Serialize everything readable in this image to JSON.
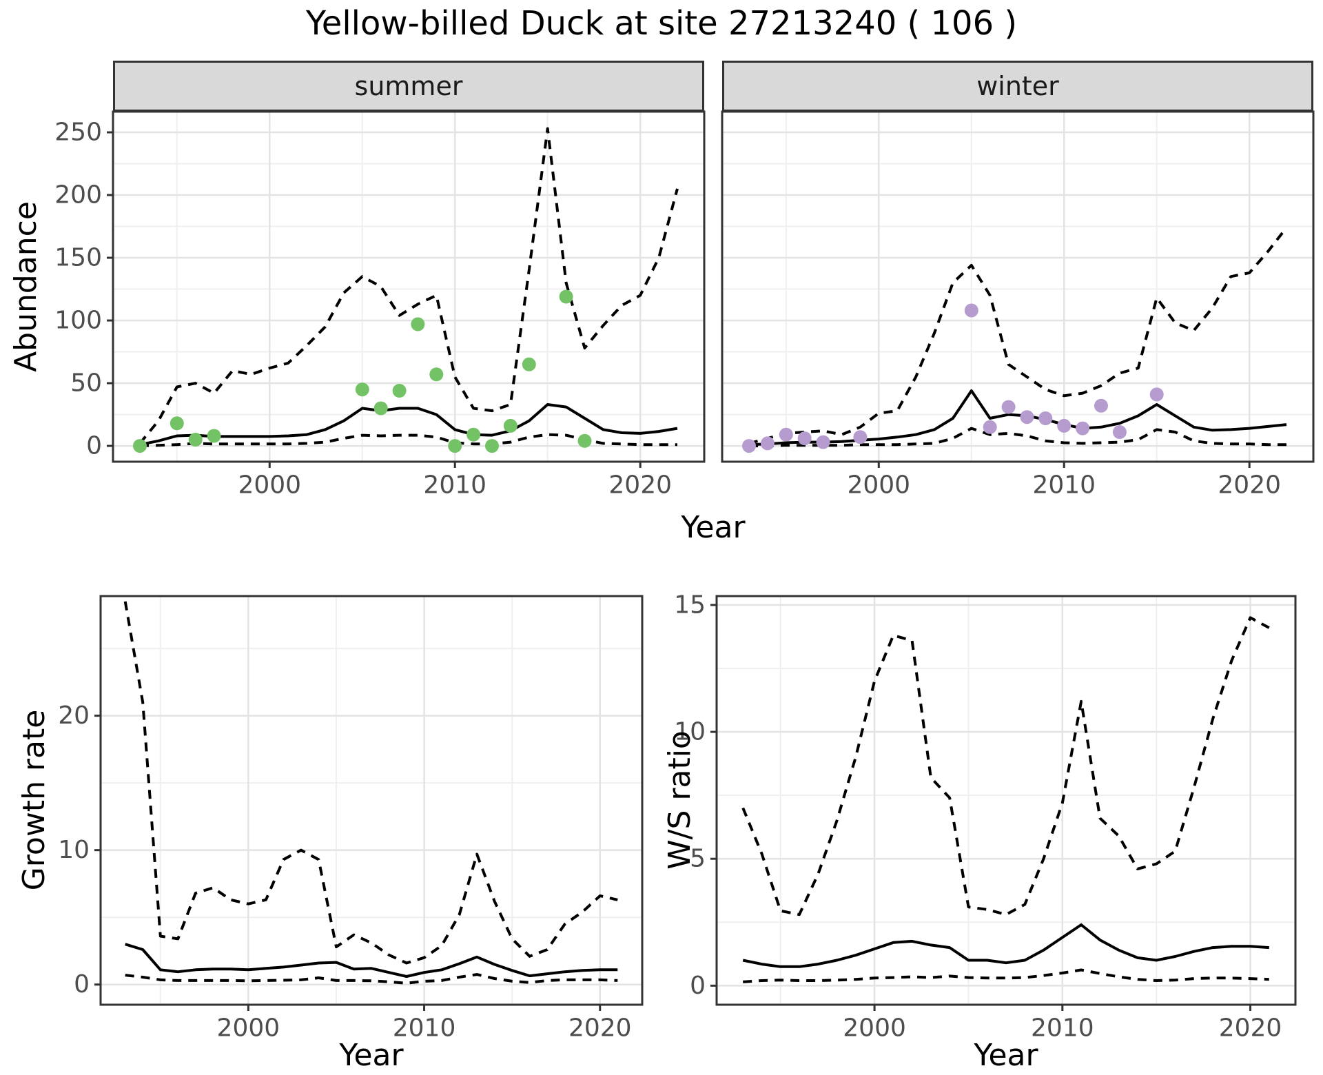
{
  "title": "Yellow-billed Duck at site 27213240 ( 106 )",
  "labels": {
    "year": "Year"
  },
  "colors": {
    "summer_points": "#74c266",
    "winter_points": "#b69bce",
    "line": "#000000",
    "grid_major": "#e3e3e3",
    "grid_minor": "#efefef",
    "panel_border": "#333333",
    "strip_fill": "#d9d9d9",
    "tick_label": "#4d4d4d"
  },
  "chart_data": [
    {
      "id": "abundance-summer",
      "type": "line",
      "facet_label": "summer",
      "ylabel": "Abundance",
      "x": [
        1993,
        1994,
        1995,
        1996,
        1997,
        1998,
        1999,
        2000,
        2001,
        2002,
        2003,
        2004,
        2005,
        2006,
        2007,
        2008,
        2009,
        2010,
        2011,
        2012,
        2013,
        2014,
        2015,
        2016,
        2017,
        2018,
        2019,
        2020,
        2021,
        2022
      ],
      "series": [
        {
          "name": "upper-95ci",
          "style": "dashed",
          "values": [
            2,
            20,
            47,
            50,
            42,
            60,
            57,
            62,
            66,
            80,
            95,
            122,
            135,
            127,
            104,
            113,
            120,
            55,
            30,
            28,
            33,
            140,
            253,
            130,
            78,
            96,
            112,
            120,
            150,
            205
          ]
        },
        {
          "name": "lower-95ci",
          "style": "dashed",
          "values": [
            0,
            0.5,
            1,
            2,
            1.5,
            1.5,
            1.5,
            1.5,
            1.5,
            2,
            3,
            6,
            8.5,
            8,
            8.5,
            8.5,
            7,
            2.5,
            1.5,
            1.5,
            3,
            7,
            9,
            8.5,
            5,
            2,
            1.5,
            1,
            1,
            1
          ]
        },
        {
          "name": "median-fit",
          "style": "solid",
          "values": [
            1,
            4,
            8,
            8.5,
            7.5,
            7.5,
            7.5,
            7.5,
            8,
            9,
            13,
            20,
            30,
            28,
            30,
            30,
            25,
            13,
            9,
            8.5,
            12,
            20,
            33,
            31,
            22,
            13,
            10.5,
            10,
            11.5,
            14
          ]
        }
      ],
      "points": {
        "name": "observed-counts",
        "color": "#74c266",
        "xy": [
          [
            1993,
            0
          ],
          [
            1995,
            18
          ],
          [
            1996,
            5
          ],
          [
            1997,
            8
          ],
          [
            2005,
            45
          ],
          [
            2006,
            30
          ],
          [
            2007,
            44
          ],
          [
            2008,
            97
          ],
          [
            2009,
            57
          ],
          [
            2010,
            0
          ],
          [
            2011,
            9
          ],
          [
            2012,
            0
          ],
          [
            2013,
            16
          ],
          [
            2014,
            65
          ],
          [
            2016,
            119
          ],
          [
            2017,
            4
          ]
        ]
      },
      "xlim": [
        1991.55,
        2023.45
      ],
      "ylim": [
        -12.6,
        266.5
      ],
      "xticks": [
        2000,
        2010,
        2020
      ],
      "xminor": [
        1995,
        2005,
        2015
      ],
      "yticks": [
        0,
        50,
        100,
        150,
        200,
        250
      ],
      "yminor": [
        25,
        75,
        125,
        175,
        225
      ]
    },
    {
      "id": "abundance-winter",
      "type": "line",
      "facet_label": "winter",
      "ylabel": "",
      "x": [
        1993,
        1994,
        1995,
        1996,
        1997,
        1998,
        1999,
        2000,
        2001,
        2002,
        2003,
        2004,
        2005,
        2006,
        2007,
        2008,
        2009,
        2010,
        2011,
        2012,
        2013,
        2014,
        2015,
        2016,
        2017,
        2018,
        2019,
        2020,
        2021,
        2022
      ],
      "series": [
        {
          "name": "upper-95ci",
          "style": "dashed",
          "values": [
            2,
            6,
            10,
            11,
            12,
            9,
            15,
            26,
            28,
            55,
            90,
            130,
            144,
            120,
            65,
            55,
            45,
            40,
            42,
            48,
            58,
            62,
            118,
            98,
            92,
            110,
            135,
            138,
            155,
            174
          ]
        },
        {
          "name": "lower-95ci",
          "style": "dashed",
          "values": [
            0,
            0,
            0.5,
            0.5,
            0.5,
            0.5,
            1,
            1,
            1,
            1.5,
            2,
            6,
            14,
            9,
            10,
            8,
            4,
            2.5,
            2,
            2.5,
            3,
            5,
            13,
            11,
            4,
            2,
            1.5,
            1.5,
            1,
            1
          ]
        },
        {
          "name": "median-fit",
          "style": "solid",
          "values": [
            1,
            1.5,
            2.5,
            3,
            3,
            3.5,
            4.5,
            5.5,
            7,
            9,
            13,
            22,
            44,
            22,
            25,
            24,
            21,
            17,
            14,
            15,
            18,
            24,
            33,
            24,
            15,
            12.5,
            13,
            14,
            15.5,
            17
          ]
        }
      ],
      "points": {
        "name": "observed-counts",
        "color": "#b69bce",
        "xy": [
          [
            1993,
            0
          ],
          [
            1994,
            2
          ],
          [
            1995,
            9
          ],
          [
            1996,
            6
          ],
          [
            1997,
            3
          ],
          [
            1999,
            7
          ],
          [
            2005,
            108
          ],
          [
            2006,
            15
          ],
          [
            2007,
            31
          ],
          [
            2008,
            23
          ],
          [
            2009,
            22
          ],
          [
            2010,
            16
          ],
          [
            2011,
            14
          ],
          [
            2012,
            32
          ],
          [
            2013,
            11
          ],
          [
            2015,
            41
          ]
        ]
      },
      "xlim": [
        1991.55,
        2023.45
      ],
      "ylim": [
        -12.6,
        266.5
      ],
      "xticks": [
        2000,
        2010,
        2020
      ],
      "xminor": [
        1995,
        2005,
        2015
      ],
      "yticks": [],
      "yminor": [
        25,
        75,
        125,
        175,
        225
      ]
    },
    {
      "id": "growth-rate",
      "type": "line",
      "facet_label": "",
      "ylabel": "Growth rate",
      "x": [
        1993,
        1994,
        1995,
        1996,
        1997,
        1998,
        1999,
        2000,
        2001,
        2002,
        2003,
        2004,
        2005,
        2006,
        2007,
        2008,
        2009,
        2010,
        2011,
        2012,
        2013,
        2014,
        2015,
        2016,
        2017,
        2018,
        2019,
        2020,
        2021
      ],
      "series": [
        {
          "name": "upper-95ci",
          "style": "dashed",
          "values": [
            28.5,
            21,
            3.6,
            3.4,
            6.8,
            7.2,
            6.3,
            6.0,
            6.3,
            9.3,
            10.0,
            9.3,
            2.8,
            3.7,
            3.1,
            2.2,
            1.6,
            2.0,
            2.9,
            5.2,
            9.7,
            6.2,
            3.4,
            2.1,
            2.6,
            4.5,
            5.4,
            6.6,
            6.3
          ]
        },
        {
          "name": "lower-95ci",
          "style": "dashed",
          "values": [
            0.7,
            0.55,
            0.35,
            0.3,
            0.3,
            0.3,
            0.3,
            0.28,
            0.3,
            0.32,
            0.35,
            0.5,
            0.3,
            0.3,
            0.28,
            0.2,
            0.1,
            0.25,
            0.3,
            0.55,
            0.75,
            0.45,
            0.25,
            0.15,
            0.3,
            0.35,
            0.35,
            0.35,
            0.3
          ]
        },
        {
          "name": "median-fit",
          "style": "solid",
          "values": [
            3.0,
            2.6,
            1.1,
            0.95,
            1.1,
            1.15,
            1.15,
            1.1,
            1.2,
            1.3,
            1.45,
            1.6,
            1.65,
            1.15,
            1.2,
            0.9,
            0.6,
            0.9,
            1.1,
            1.55,
            2.05,
            1.5,
            1.05,
            0.65,
            0.8,
            0.95,
            1.05,
            1.1,
            1.1
          ]
        }
      ],
      "points": null,
      "xlim": [
        1991.6,
        2022.4
      ],
      "ylim": [
        -1.5,
        28.9
      ],
      "xticks": [
        2000,
        2010,
        2020
      ],
      "xminor": [
        1995,
        2005,
        2015
      ],
      "yticks": [
        0,
        10,
        20
      ],
      "yminor": [
        5,
        15,
        25
      ]
    },
    {
      "id": "ws-ratio",
      "type": "line",
      "facet_label": "",
      "ylabel": "W/S ratio",
      "x": [
        1993,
        1994,
        1995,
        1996,
        1997,
        1998,
        1999,
        2000,
        2001,
        2002,
        2003,
        2004,
        2005,
        2006,
        2007,
        2008,
        2009,
        2010,
        2011,
        2012,
        2013,
        2014,
        2015,
        2016,
        2017,
        2018,
        2019,
        2020,
        2021
      ],
      "series": [
        {
          "name": "upper-95ci",
          "style": "dashed",
          "values": [
            7.0,
            5.2,
            2.95,
            2.8,
            4.4,
            6.5,
            9.0,
            12.0,
            13.8,
            13.6,
            8.2,
            7.4,
            3.1,
            3.0,
            2.8,
            3.2,
            5.0,
            7.2,
            11.2,
            6.6,
            5.9,
            4.6,
            4.8,
            5.3,
            7.8,
            10.5,
            12.8,
            14.5,
            14.1
          ]
        },
        {
          "name": "lower-95ci",
          "style": "dashed",
          "values": [
            0.15,
            0.2,
            0.22,
            0.2,
            0.2,
            0.22,
            0.25,
            0.3,
            0.32,
            0.35,
            0.32,
            0.38,
            0.32,
            0.3,
            0.3,
            0.32,
            0.4,
            0.5,
            0.62,
            0.48,
            0.35,
            0.25,
            0.2,
            0.22,
            0.28,
            0.3,
            0.3,
            0.28,
            0.25
          ]
        },
        {
          "name": "median-fit",
          "style": "solid",
          "values": [
            1.0,
            0.85,
            0.75,
            0.75,
            0.85,
            1.0,
            1.2,
            1.45,
            1.7,
            1.75,
            1.6,
            1.5,
            1.0,
            1.0,
            0.9,
            1.0,
            1.4,
            1.9,
            2.4,
            1.8,
            1.4,
            1.1,
            1.0,
            1.15,
            1.35,
            1.5,
            1.55,
            1.55,
            1.5
          ]
        }
      ],
      "points": null,
      "xlim": [
        1991.6,
        2022.4
      ],
      "ylim": [
        -0.75,
        15.35
      ],
      "xticks": [
        2000,
        2010,
        2020
      ],
      "xminor": [
        1995,
        2005,
        2015
      ],
      "yticks": [
        0,
        5,
        10,
        15
      ],
      "yminor": [
        2.5,
        7.5,
        12.5
      ]
    }
  ]
}
